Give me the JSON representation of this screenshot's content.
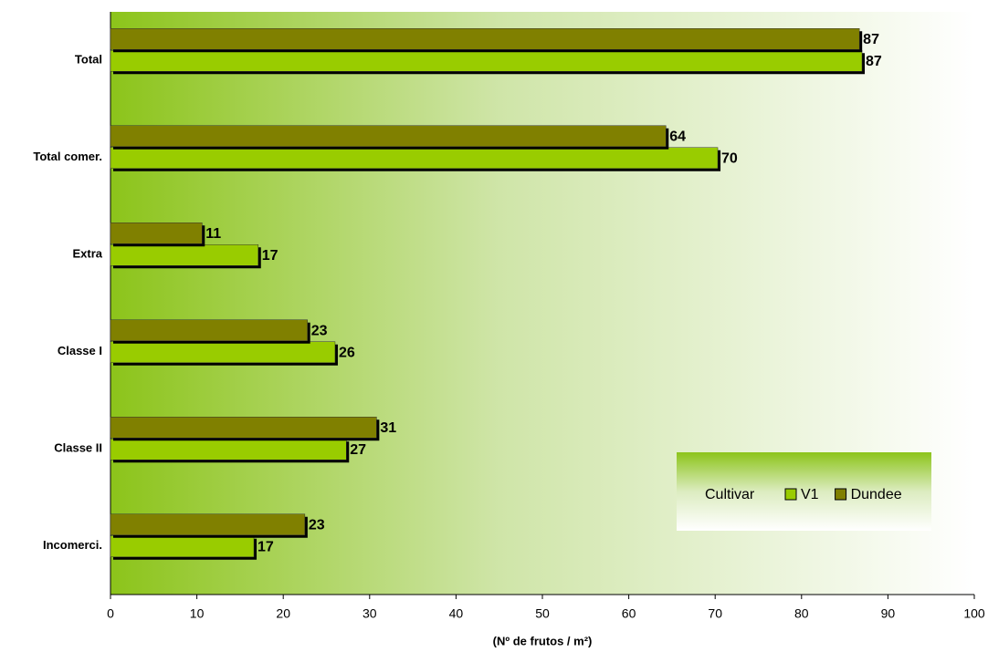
{
  "chart_data": {
    "type": "bar",
    "orientation": "horizontal",
    "x_label": "(Nº de frutos / m²)",
    "categories": [
      "Total",
      "Total comer.",
      "Extra",
      "Classe I",
      "Classe II",
      "Incomerci."
    ],
    "series": [
      {
        "name": "V1",
        "color": "#99cc00",
        "values": [
          87,
          70.3,
          17.1,
          26,
          27.3,
          16.6
        ],
        "value_labels": [
          "87",
          "70",
          "17",
          "26",
          "27",
          "17"
        ]
      },
      {
        "name": "Dundee",
        "color": "#808000",
        "values": [
          86.7,
          64.3,
          10.6,
          22.8,
          30.8,
          22.5
        ],
        "value_labels": [
          "87",
          "64",
          "11",
          "23",
          "31",
          "23"
        ]
      }
    ],
    "legend_title": "Cultivar",
    "xlim": [
      0,
      100
    ],
    "xticks": [
      0,
      10,
      20,
      30,
      40,
      50,
      60,
      70,
      80,
      90,
      100
    ]
  }
}
